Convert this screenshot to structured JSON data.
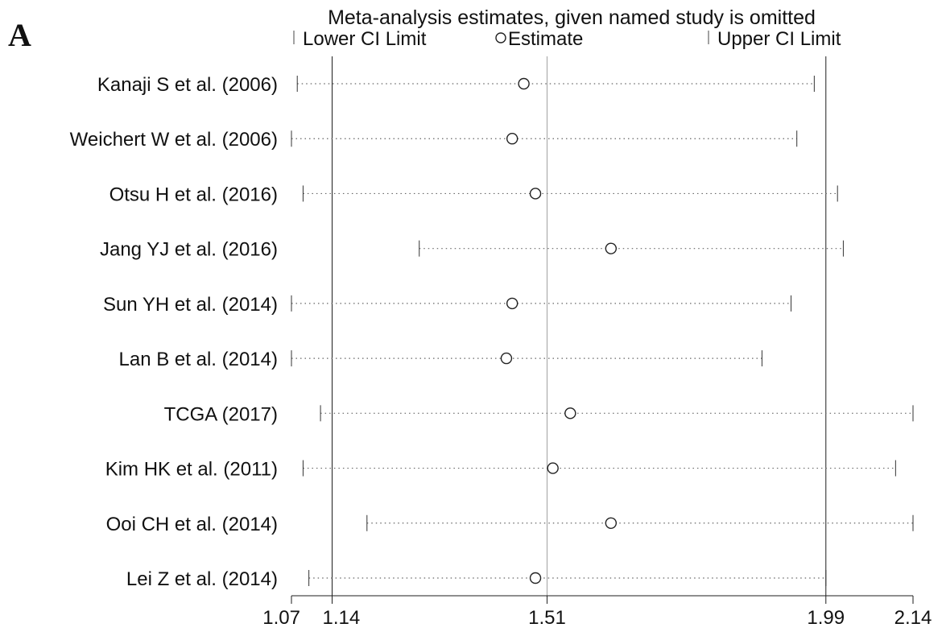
{
  "panel_label": "A",
  "chart_data": {
    "type": "scatter",
    "title": "Meta-analysis estimates, given named study is omitted",
    "legend": {
      "placement": "top",
      "items": [
        {
          "marker": "bar",
          "label": "Lower CI Limit"
        },
        {
          "marker": "circle",
          "label": "Estimate"
        },
        {
          "marker": "bar",
          "label": "Upper CI Limit"
        }
      ]
    },
    "xlim": [
      1.07,
      2.14
    ],
    "xticks": [
      {
        "value": 1.07,
        "label": "1.07"
      },
      {
        "value": 1.14,
        "label": "1.14"
      },
      {
        "value": 1.51,
        "label": "1.51"
      },
      {
        "value": 1.99,
        "label": "1.99"
      },
      {
        "value": 2.14,
        "label": "2.14"
      }
    ],
    "reference_lines": [
      {
        "value": 1.14,
        "style": "dark"
      },
      {
        "value": 1.51,
        "style": "light"
      },
      {
        "value": 1.99,
        "style": "dark"
      }
    ],
    "studies": [
      {
        "label": "Kanaji S et al. (2006)",
        "lower": 1.08,
        "estimate": 1.47,
        "upper": 1.97
      },
      {
        "label": "Weichert W et al. (2006)",
        "lower": 1.07,
        "estimate": 1.45,
        "upper": 1.94
      },
      {
        "label": "Otsu H et al. (2016)",
        "lower": 1.09,
        "estimate": 1.49,
        "upper": 2.01
      },
      {
        "label": "Jang YJ et al. (2016)",
        "lower": 1.29,
        "estimate": 1.62,
        "upper": 2.02
      },
      {
        "label": "Sun YH et al. (2014)",
        "lower": 1.07,
        "estimate": 1.45,
        "upper": 1.93
      },
      {
        "label": "Lan B et al. (2014)",
        "lower": 1.07,
        "estimate": 1.44,
        "upper": 1.88
      },
      {
        "label": "TCGA (2017)",
        "lower": 1.12,
        "estimate": 1.55,
        "upper": 2.14
      },
      {
        "label": "Kim HK et al. (2011)",
        "lower": 1.09,
        "estimate": 1.52,
        "upper": 2.11
      },
      {
        "label": "Ooi CH et al. (2014)",
        "lower": 1.2,
        "estimate": 1.62,
        "upper": 2.14
      },
      {
        "label": "Lei Z et al. (2014)",
        "lower": 1.1,
        "estimate": 1.49,
        "upper": 1.99
      }
    ]
  }
}
